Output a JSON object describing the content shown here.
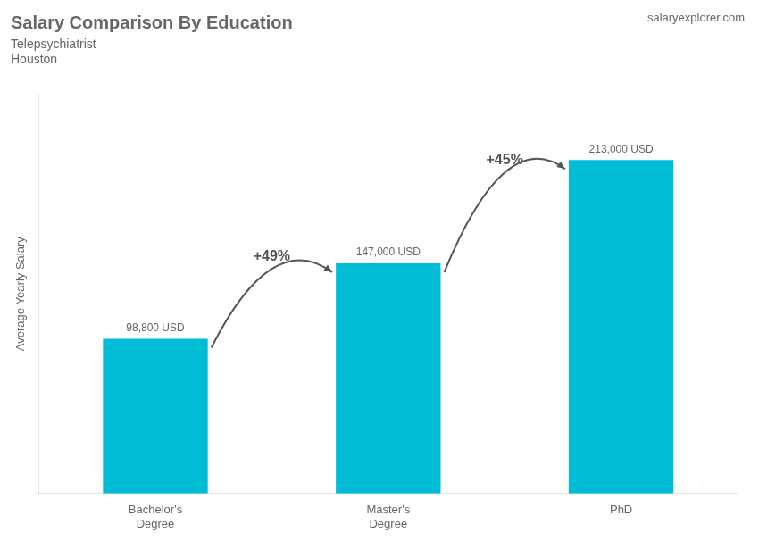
{
  "chart_data": {
    "type": "bar",
    "title": "Salary Comparison By Education",
    "subtitle": [
      "Telepsychiatrist",
      "Houston"
    ],
    "ylabel": "Average Yearly Salary",
    "categories": [
      "Bachelor's\nDegree",
      "Master's\nDegree",
      "PhD"
    ],
    "values": [
      98800,
      147000,
      213000
    ],
    "value_labels": [
      "98,800 USD",
      "147,000 USD",
      "213,000 USD"
    ],
    "data_labels": true,
    "annotations": [
      "+49%",
      "+45%",
      "salaryexplorer.com"
    ],
    "color": "#00bcd4",
    "ylim": [
      0,
      255000
    ],
    "grid": false,
    "tick_labels": "x"
  }
}
